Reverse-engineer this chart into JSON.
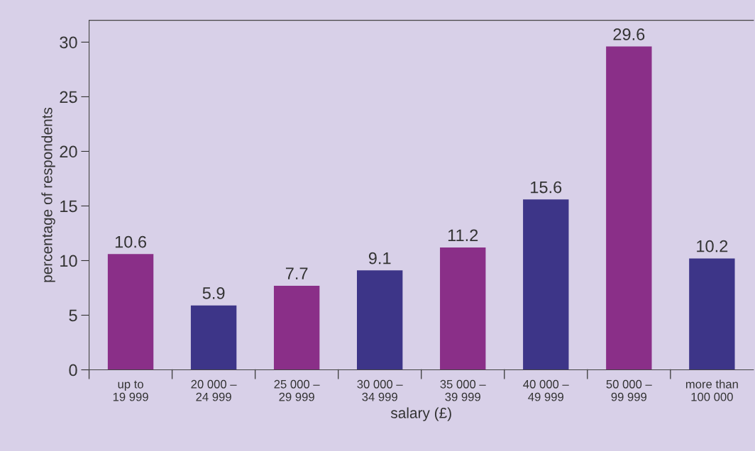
{
  "chart_data": {
    "type": "bar",
    "xlabel": "salary (£)",
    "ylabel": "percentage of respondents",
    "categories": [
      "up to\n19 999",
      "20 000 –\n24 999",
      "25 000 –\n29 999",
      "30 000 –\n34 999",
      "35 000 –\n39 999",
      "40 000 –\n49 999",
      "50 000 –\n99 999",
      "more than\n100 000"
    ],
    "values": [
      10.6,
      5.9,
      7.7,
      9.1,
      11.2,
      15.6,
      29.6,
      10.2
    ],
    "colors": [
      "#8a2f88",
      "#3d3588",
      "#8a2f88",
      "#3d3588",
      "#8a2f88",
      "#3d3588",
      "#8a2f88",
      "#3d3588"
    ],
    "data_labels": true,
    "ylim": [
      0,
      32
    ],
    "yticks": [
      0,
      5,
      10,
      15,
      20,
      25,
      30
    ],
    "grid": false,
    "legend": false
  }
}
